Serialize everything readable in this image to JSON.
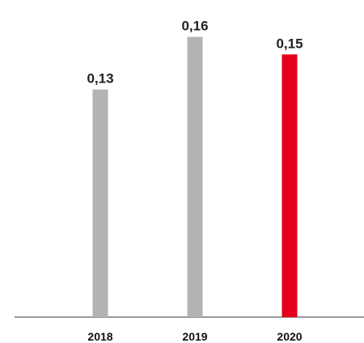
{
  "chart_data": {
    "type": "bar",
    "categories": [
      "2018",
      "2019",
      "2020"
    ],
    "values": [
      0.13,
      0.16,
      0.15
    ],
    "data_labels": [
      "0,13",
      "0,16",
      "0,15"
    ],
    "colors": [
      "#b3b3b3",
      "#b3b3b3",
      "#e2001a"
    ],
    "ylim": [
      0,
      0.17
    ],
    "grid": false,
    "legend": "none",
    "title": "",
    "xlabel": "",
    "ylabel": ""
  }
}
